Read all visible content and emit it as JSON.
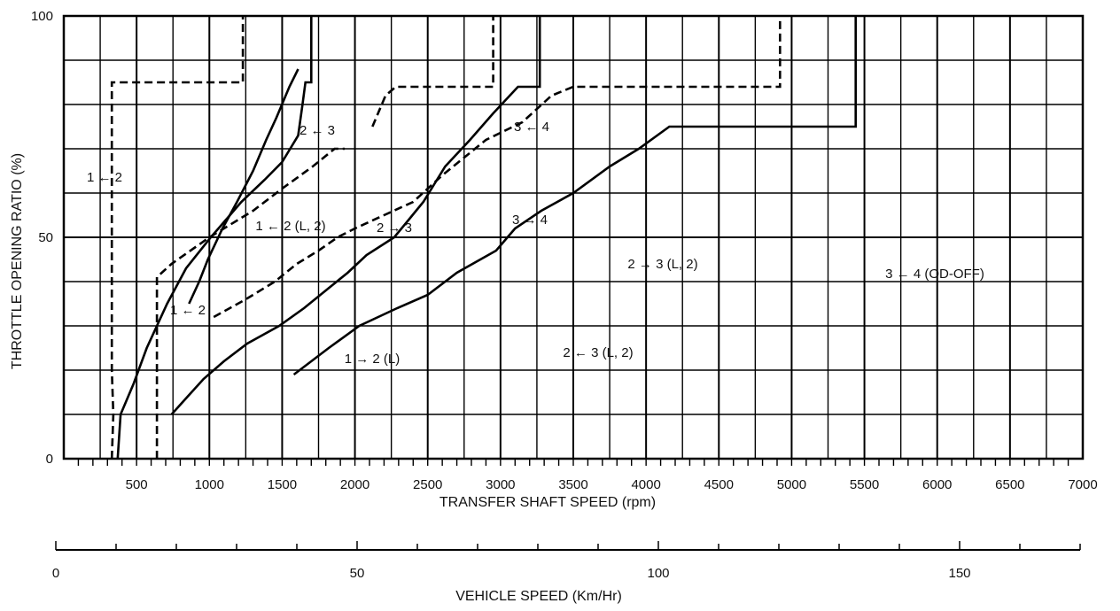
{
  "chart_data": {
    "type": "line",
    "xlabel": "TRANSFER SHAFT SPEED (rpm)",
    "ylabel": "THROTTLE OPENING RATIO (%)",
    "x2label": "VEHICLE SPEED (Km/Hr)",
    "xlim": [
      0,
      7000
    ],
    "ylim": [
      0,
      100
    ],
    "x_ticks": [
      500,
      1000,
      1500,
      2000,
      2500,
      3000,
      3500,
      4000,
      4500,
      5000,
      5500,
      6000,
      6500,
      7000
    ],
    "y_ticks": [
      0,
      50,
      100
    ],
    "x2_ticks": [
      0,
      50,
      100,
      150
    ],
    "grid": true,
    "series": [
      {
        "name": "1 ← 2",
        "style": "dashed",
        "points": [
          [
            330,
            0
          ],
          [
            340,
            10
          ],
          [
            330,
            20
          ],
          [
            330,
            40
          ],
          [
            330,
            60
          ],
          [
            330,
            70
          ],
          [
            330,
            85
          ],
          [
            1230,
            85
          ],
          [
            1230,
            100
          ]
        ]
      },
      {
        "name": "1 ← 2",
        "style": "dashed",
        "points": [
          [
            640,
            0
          ],
          [
            640,
            10
          ],
          [
            640,
            41
          ],
          [
            740,
            44
          ],
          [
            1000,
            50
          ],
          [
            1300,
            56
          ],
          [
            1500,
            61
          ],
          [
            1710,
            66
          ],
          [
            1860,
            70
          ],
          [
            1930,
            70
          ]
        ]
      },
      {
        "name": "",
        "style": "solid",
        "points": [
          [
            370,
            0
          ],
          [
            390,
            10
          ],
          [
            480,
            17
          ],
          [
            570,
            25
          ],
          [
            710,
            35
          ],
          [
            840,
            43
          ],
          [
            1010,
            50
          ],
          [
            1220,
            58
          ],
          [
            1380,
            63
          ],
          [
            1500,
            67
          ],
          [
            1610,
            73
          ],
          [
            1640,
            80
          ],
          [
            1660,
            85
          ],
          [
            1700,
            85
          ],
          [
            1700,
            100
          ]
        ]
      },
      {
        "name": "1 → 2",
        "style": "solid",
        "points": [
          [
            860,
            35
          ],
          [
            930,
            40
          ],
          [
            990,
            45
          ],
          [
            1090,
            52
          ],
          [
            1190,
            58
          ],
          [
            1300,
            65
          ],
          [
            1390,
            72
          ],
          [
            1460,
            77
          ],
          [
            1550,
            84
          ],
          [
            1610,
            88
          ]
        ]
      },
      {
        "name": "1 ← 2",
        "style": "dashed",
        "points": [
          [
            1030,
            32
          ],
          [
            1250,
            36
          ],
          [
            1450,
            40
          ],
          [
            1600,
            44
          ],
          [
            1750,
            47
          ],
          [
            1880,
            50
          ],
          [
            2000,
            52
          ],
          [
            2200,
            55
          ],
          [
            2400,
            58
          ],
          [
            2600,
            64
          ],
          [
            2900,
            72
          ],
          [
            3150,
            76
          ],
          [
            3350,
            82
          ],
          [
            3500,
            84
          ],
          [
            4920,
            84
          ],
          [
            4920,
            100
          ]
        ]
      },
      {
        "name": "2 → 3",
        "style": "solid",
        "points": [
          [
            740,
            10
          ],
          [
            850,
            14
          ],
          [
            960,
            18
          ],
          [
            1100,
            22
          ],
          [
            1260,
            26
          ],
          [
            1480,
            30
          ],
          [
            1650,
            34
          ],
          [
            1800,
            38
          ],
          [
            1950,
            42
          ],
          [
            2080,
            46
          ],
          [
            2270,
            50
          ],
          [
            2370,
            54
          ],
          [
            2470,
            58
          ],
          [
            2620,
            66
          ],
          [
            2790,
            72
          ],
          [
            2950,
            78
          ],
          [
            3120,
            84
          ],
          [
            3270,
            84
          ],
          [
            3270,
            100
          ]
        ]
      },
      {
        "name": "2 ← 3 (L, 2)",
        "style": "dashed",
        "points": [
          [
            2120,
            75
          ],
          [
            2210,
            82
          ],
          [
            2280,
            84
          ],
          [
            2950,
            84
          ],
          [
            2950,
            100
          ]
        ]
      },
      {
        "name": "3 → 4",
        "style": "solid",
        "points": [
          [
            1580,
            19
          ],
          [
            1820,
            25
          ],
          [
            2030,
            30
          ],
          [
            2290,
            34
          ],
          [
            2500,
            37
          ],
          [
            2700,
            42
          ],
          [
            2970,
            47
          ],
          [
            3100,
            52
          ],
          [
            3280,
            56
          ],
          [
            3500,
            60
          ],
          [
            3750,
            66
          ],
          [
            3950,
            70
          ],
          [
            4160,
            75
          ],
          [
            5440,
            75
          ],
          [
            5440,
            100
          ]
        ]
      }
    ]
  },
  "annotations": {
    "a1": "1 ← 2",
    "a2": "2 ← 3",
    "a3": "3 ← 4",
    "a4": "1 ← 2 (L, 2)",
    "a5": "2 → 3",
    "a6": "3 → 4",
    "a7": "2 → 3 (L, 2)",
    "a8": "3 ← 4 (OD-OFF)",
    "a9": "1 ← 2",
    "a10": "1 → 2 (L)",
    "a11": "2 ← 3 (L, 2)"
  }
}
